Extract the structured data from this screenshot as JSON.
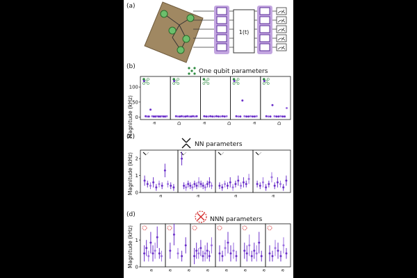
{
  "panels": {
    "a": {
      "label": "(a)",
      "unitary_label": "1(t)"
    },
    "b": {
      "label": "(b)",
      "title": "One qubit parameters",
      "ylabel": "Magnitude (kHz)",
      "yticks": [
        "0",
        "50",
        "100"
      ],
      "xticks": [
        "a",
        "D",
        "a",
        "D",
        "a",
        "D"
      ]
    },
    "c": {
      "label": "(c)",
      "title": "NN parameters",
      "ylabel": "Magnitude (kHz)",
      "yticks": [
        "0",
        "1",
        "2"
      ],
      "xticks": [
        "a",
        "a",
        "a",
        "a"
      ]
    },
    "d": {
      "label": "(d)",
      "title": "NNN parameters",
      "ylabel": "Magnitude (kHz)",
      "yticks": [
        "0",
        "1"
      ],
      "xticks": [
        "a",
        "a",
        "a",
        "a",
        "a",
        "a",
        "a",
        "a"
      ]
    }
  },
  "chart_data": [
    {
      "type": "scatter",
      "panel": "b",
      "title": "One qubit parameters",
      "ylabel": "Magnitude (kHz)",
      "ylim": [
        -8,
        135
      ],
      "subplots": 5,
      "series": [
        {
          "name": "subplot-1",
          "values": [
            120,
            3,
            2,
            2,
            25,
            3,
            2,
            2,
            3,
            2,
            2,
            3,
            2,
            2,
            3
          ]
        },
        {
          "name": "subplot-2",
          "values": [
            120,
            3,
            2,
            2,
            3,
            2,
            2,
            3,
            2,
            2,
            3,
            2,
            3
          ]
        },
        {
          "name": "subplot-3",
          "values": [
            3,
            2,
            2,
            3,
            2,
            2,
            3,
            2,
            2,
            3,
            2,
            3
          ]
        },
        {
          "name": "subplot-4",
          "values": [
            120,
            3,
            2,
            2,
            55,
            3,
            2,
            2,
            3,
            2,
            2,
            3
          ]
        },
        {
          "name": "subplot-5",
          "values": [
            120,
            3,
            2,
            2,
            40,
            3,
            2,
            2,
            3,
            2,
            2,
            30
          ]
        }
      ]
    },
    {
      "type": "scatter",
      "panel": "c",
      "title": "NN parameters",
      "ylabel": "Magnitude (kHz)",
      "ylim": [
        0,
        2.5
      ],
      "subplots": 4,
      "series": [
        {
          "name": "subplot-1",
          "values": [
            0.7,
            0.5,
            0.4,
            0.6,
            0.3,
            0.5,
            0.4,
            1.3,
            0.5,
            0.4,
            0.3
          ],
          "errors": [
            0.3,
            0.2,
            0.2,
            0.3,
            0.2,
            0.2,
            0.2,
            0.4,
            0.2,
            0.2,
            0.2
          ]
        },
        {
          "name": "subplot-2",
          "values": [
            2.0,
            0.4,
            0.3,
            0.5,
            0.4,
            0.3,
            0.5,
            0.4,
            0.6,
            0.5,
            0.4,
            0.3,
            0.5,
            0.6,
            0.4
          ],
          "errors": [
            0.4,
            0.2,
            0.2,
            0.2,
            0.2,
            0.2,
            0.2,
            0.2,
            0.3,
            0.2,
            0.2,
            0.2,
            0.2,
            0.3,
            0.2
          ]
        },
        {
          "name": "subplot-3",
          "values": [
            0.4,
            0.3,
            0.5,
            0.4,
            0.6,
            0.3,
            0.5,
            0.7,
            0.4,
            0.6,
            0.5,
            0.8
          ],
          "errors": [
            0.2,
            0.2,
            0.2,
            0.2,
            0.3,
            0.2,
            0.2,
            0.3,
            0.2,
            0.3,
            0.2,
            0.3
          ]
        },
        {
          "name": "subplot-4",
          "values": [
            0.5,
            0.4,
            0.6,
            0.3,
            0.5,
            0.9,
            0.4,
            0.6,
            0.5,
            0.3,
            0.7
          ],
          "errors": [
            0.2,
            0.2,
            0.3,
            0.2,
            0.2,
            0.3,
            0.2,
            0.3,
            0.2,
            0.2,
            0.3
          ]
        }
      ]
    },
    {
      "type": "scatter",
      "panel": "d",
      "title": "NNN parameters",
      "ylabel": "Magnitude (kHz)",
      "ylim": [
        0,
        1.6
      ],
      "subplots": 6,
      "series": [
        {
          "name": "subplot-1",
          "values": [
            0.5,
            0.7,
            0.4,
            0.9,
            0.5,
            0.6,
            1.1,
            0.5,
            0.4
          ],
          "errors": [
            0.3,
            0.3,
            0.2,
            0.4,
            0.3,
            0.3,
            0.4,
            0.2,
            0.2
          ]
        },
        {
          "name": "subplot-2",
          "values": [
            0.6,
            1.2,
            0.5,
            0.4,
            0.8
          ],
          "errors": [
            0.3,
            0.4,
            0.2,
            0.2,
            0.3
          ]
        },
        {
          "name": "subplot-3",
          "values": [
            0.4,
            0.6,
            0.5,
            0.7,
            0.4,
            0.5,
            0.6,
            0.4,
            0.8
          ],
          "errors": [
            0.3,
            0.3,
            0.2,
            0.3,
            0.2,
            0.3,
            0.3,
            0.2,
            0.3
          ]
        },
        {
          "name": "subplot-4",
          "values": [
            0.5,
            0.4,
            0.7,
            0.9,
            0.5,
            0.6,
            0.4
          ],
          "errors": [
            0.3,
            0.2,
            0.3,
            0.4,
            0.3,
            0.3,
            0.2
          ]
        },
        {
          "name": "subplot-5",
          "values": [
            0.6,
            0.5,
            0.8,
            0.4,
            0.6,
            0.5,
            0.9,
            0.4
          ],
          "errors": [
            0.3,
            0.3,
            0.4,
            0.2,
            0.3,
            0.3,
            0.4,
            0.2
          ]
        },
        {
          "name": "subplot-6",
          "values": [
            0.5,
            0.4,
            0.7,
            0.6,
            0.4,
            0.8,
            0.5
          ],
          "errors": [
            0.3,
            0.2,
            0.3,
            0.3,
            0.2,
            0.3,
            0.2
          ]
        }
      ]
    }
  ],
  "colors": {
    "marker": "#6a2fc9",
    "marker_light": "#9a6ee0",
    "green": "#2e8b40",
    "green_node": "#6cbf6c",
    "red": "#d42a2a",
    "gate": "#b99bd6",
    "gate_dark": "#5a2a9a"
  }
}
